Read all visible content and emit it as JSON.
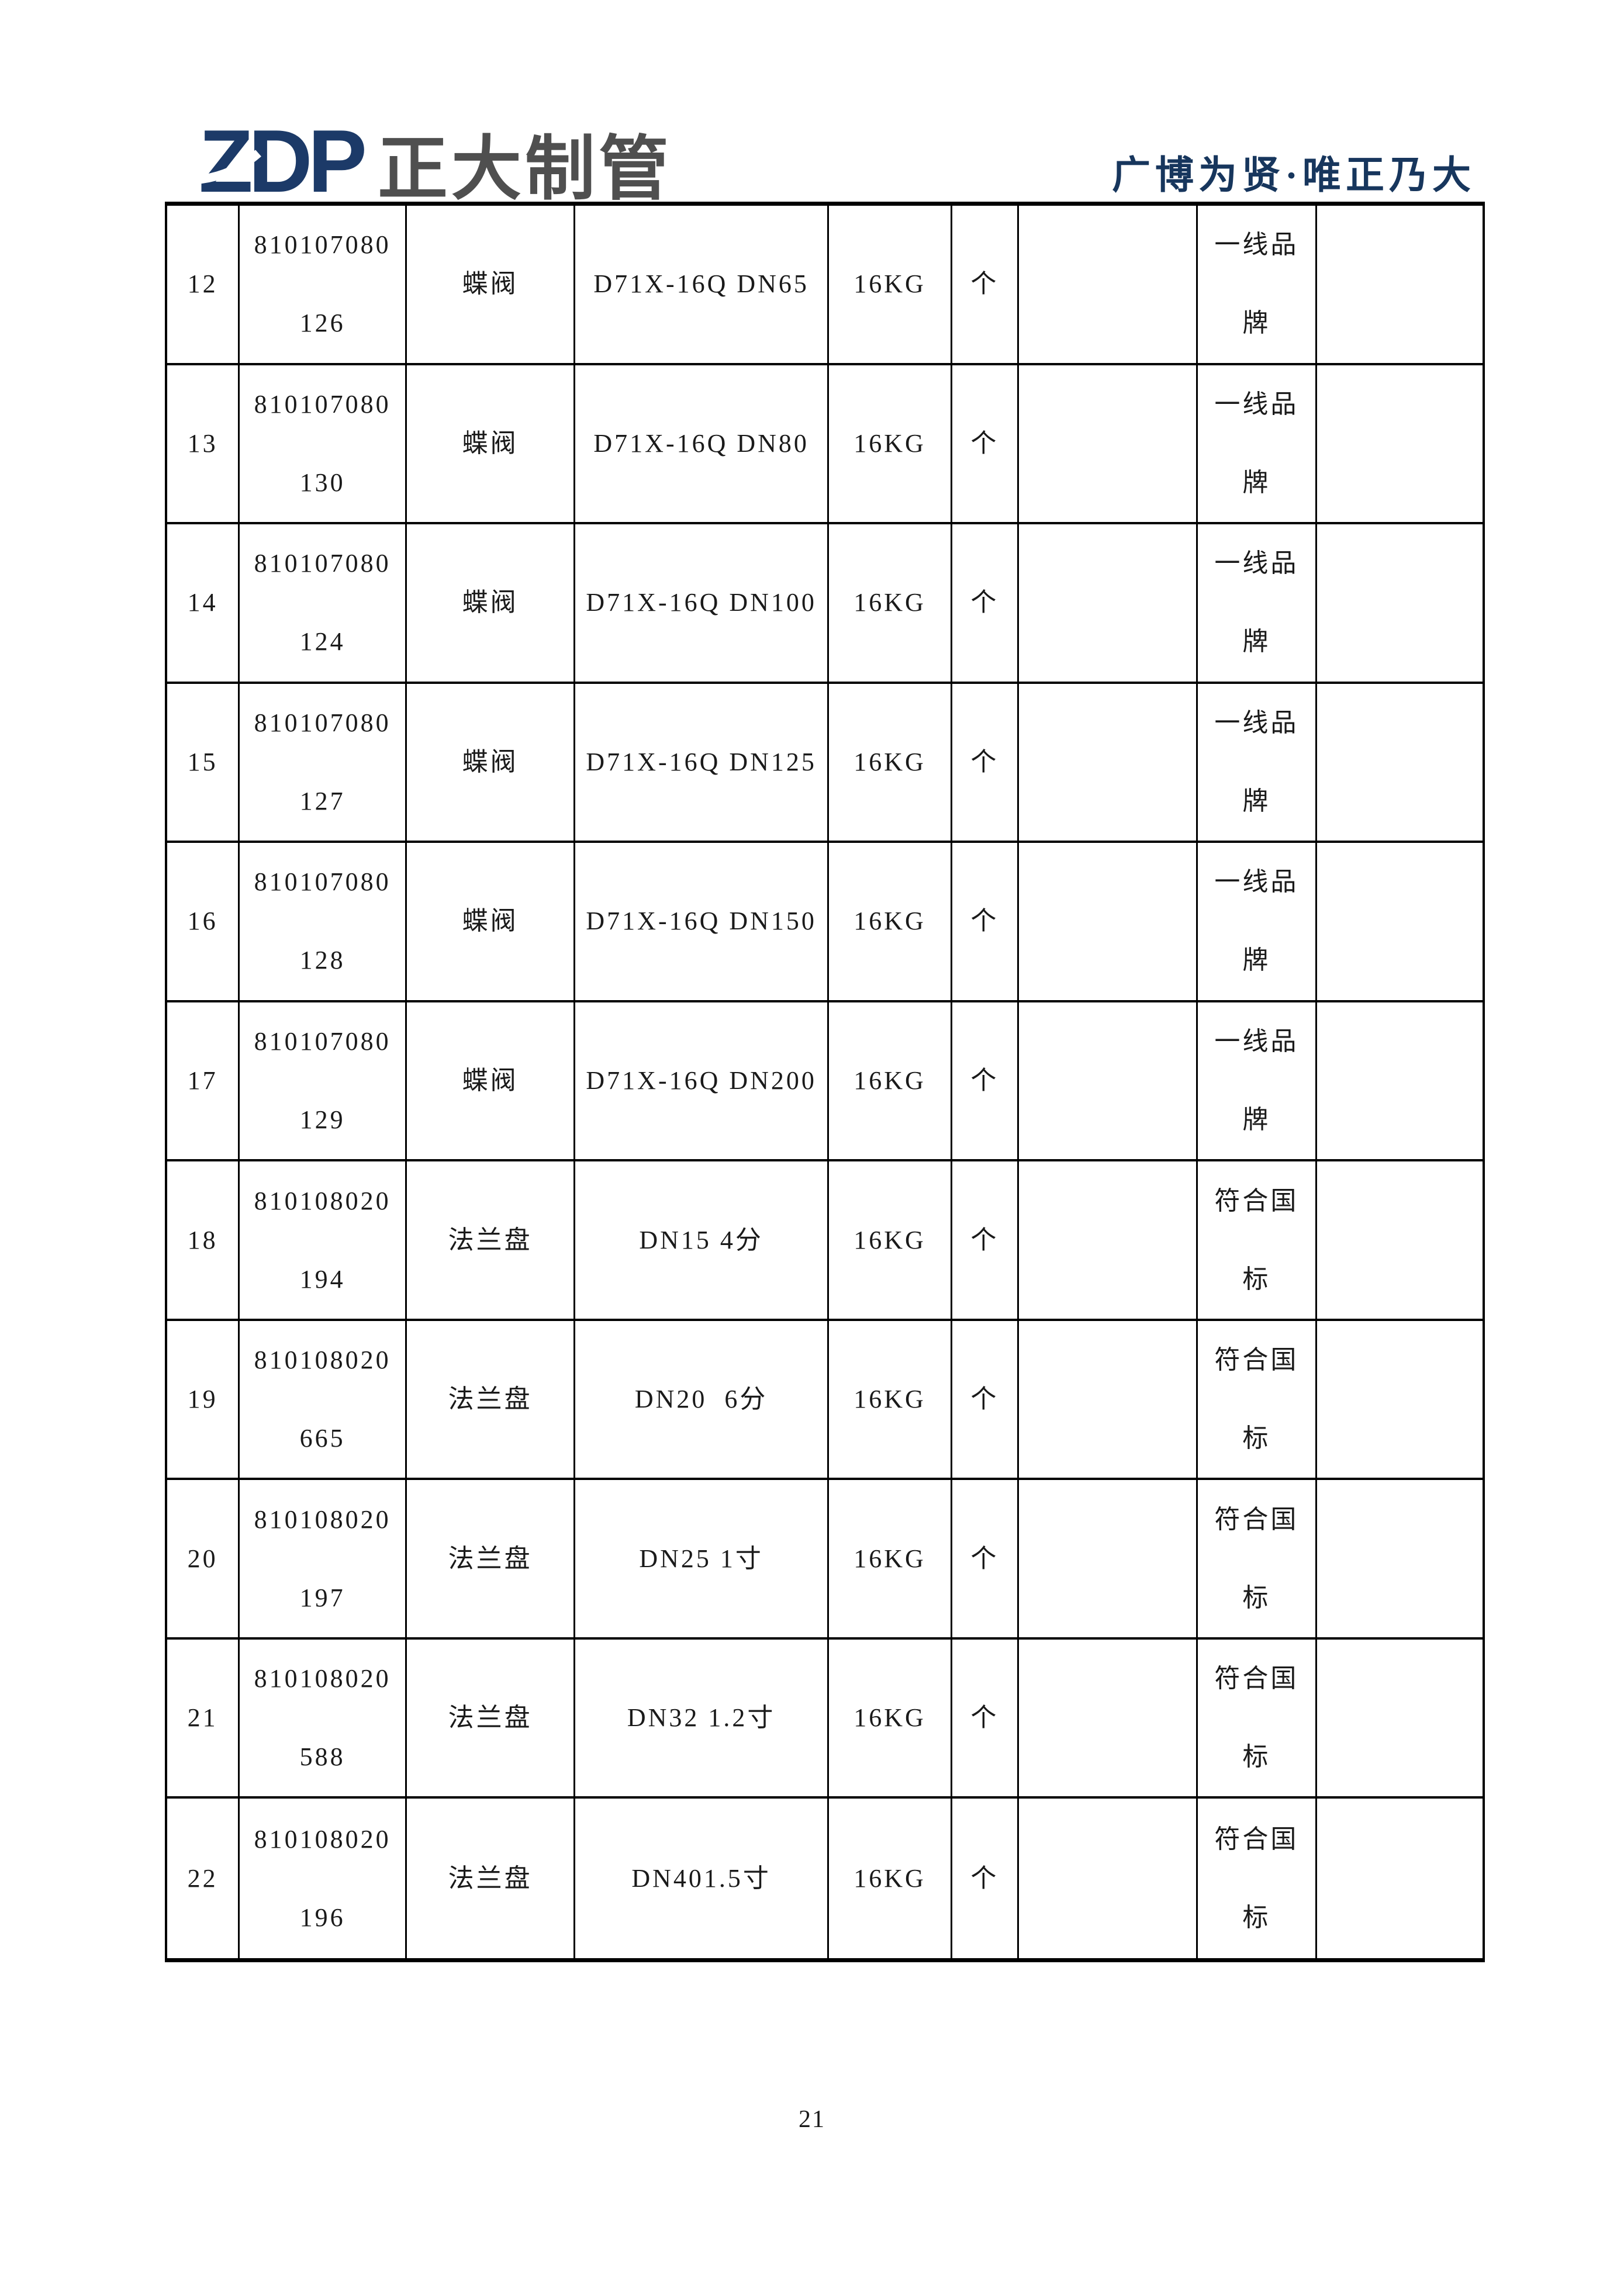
{
  "header": {
    "logo": {
      "zdp": "ZDP",
      "company": "正大制管"
    },
    "slogan": "广博为贤·唯正乃大",
    "colors": {
      "logo_navy": "#1c3a68",
      "logo_gray": "#4f4f4f",
      "slogan_navy": "#17365d"
    }
  },
  "table": {
    "rows": [
      {
        "no": "12",
        "code": [
          "810107080",
          "126"
        ],
        "name": "蝶阀",
        "spec": "D71X-16Q DN65",
        "pressure": "16KG",
        "unit": "个",
        "col7": "",
        "note": [
          "一线品",
          "牌"
        ],
        "col9": ""
      },
      {
        "no": "13",
        "code": [
          "810107080",
          "130"
        ],
        "name": "蝶阀",
        "spec": "D71X-16Q DN80",
        "pressure": "16KG",
        "unit": "个",
        "col7": "",
        "note": [
          "一线品",
          "牌"
        ],
        "col9": ""
      },
      {
        "no": "14",
        "code": [
          "810107080",
          "124"
        ],
        "name": "蝶阀",
        "spec": "D71X-16Q DN100",
        "pressure": "16KG",
        "unit": "个",
        "col7": "",
        "note": [
          "一线品",
          "牌"
        ],
        "col9": ""
      },
      {
        "no": "15",
        "code": [
          "810107080",
          "127"
        ],
        "name": "蝶阀",
        "spec": "D71X-16Q DN125",
        "pressure": "16KG",
        "unit": "个",
        "col7": "",
        "note": [
          "一线品",
          "牌"
        ],
        "col9": ""
      },
      {
        "no": "16",
        "code": [
          "810107080",
          "128"
        ],
        "name": "蝶阀",
        "spec": "D71X-16Q DN150",
        "pressure": "16KG",
        "unit": "个",
        "col7": "",
        "note": [
          "一线品",
          "牌"
        ],
        "col9": ""
      },
      {
        "no": "17",
        "code": [
          "810107080",
          "129"
        ],
        "name": "蝶阀",
        "spec": "D71X-16Q DN200",
        "pressure": "16KG",
        "unit": "个",
        "col7": "",
        "note": [
          "一线品",
          "牌"
        ],
        "col9": ""
      },
      {
        "no": "18",
        "code": [
          "810108020",
          "194"
        ],
        "name": "法兰盘",
        "spec": "DN15 4分",
        "pressure": "16KG",
        "unit": "个",
        "col7": "",
        "note": [
          "符合国",
          "标"
        ],
        "col9": ""
      },
      {
        "no": "19",
        "code": [
          "810108020",
          "665"
        ],
        "name": "法兰盘",
        "spec": "DN20  6分",
        "pressure": "16KG",
        "unit": "个",
        "col7": "",
        "note": [
          "符合国",
          "标"
        ],
        "col9": ""
      },
      {
        "no": "20",
        "code": [
          "810108020",
          "197"
        ],
        "name": "法兰盘",
        "spec": "DN25 1寸",
        "pressure": "16KG",
        "unit": "个",
        "col7": "",
        "note": [
          "符合国",
          "标"
        ],
        "col9": ""
      },
      {
        "no": "21",
        "code": [
          "810108020",
          "588"
        ],
        "name": "法兰盘",
        "spec": "DN32 1.2寸",
        "pressure": "16KG",
        "unit": "个",
        "col7": "",
        "note": [
          "符合国",
          "标"
        ],
        "col9": ""
      },
      {
        "no": "22",
        "code": [
          "810108020",
          "196"
        ],
        "name": "法兰盘",
        "spec": "DN401.5寸",
        "pressure": "16KG",
        "unit": "个",
        "col7": "",
        "note": [
          "符合国",
          "标"
        ],
        "col9": ""
      }
    ]
  },
  "footer": {
    "page_number": "21"
  }
}
